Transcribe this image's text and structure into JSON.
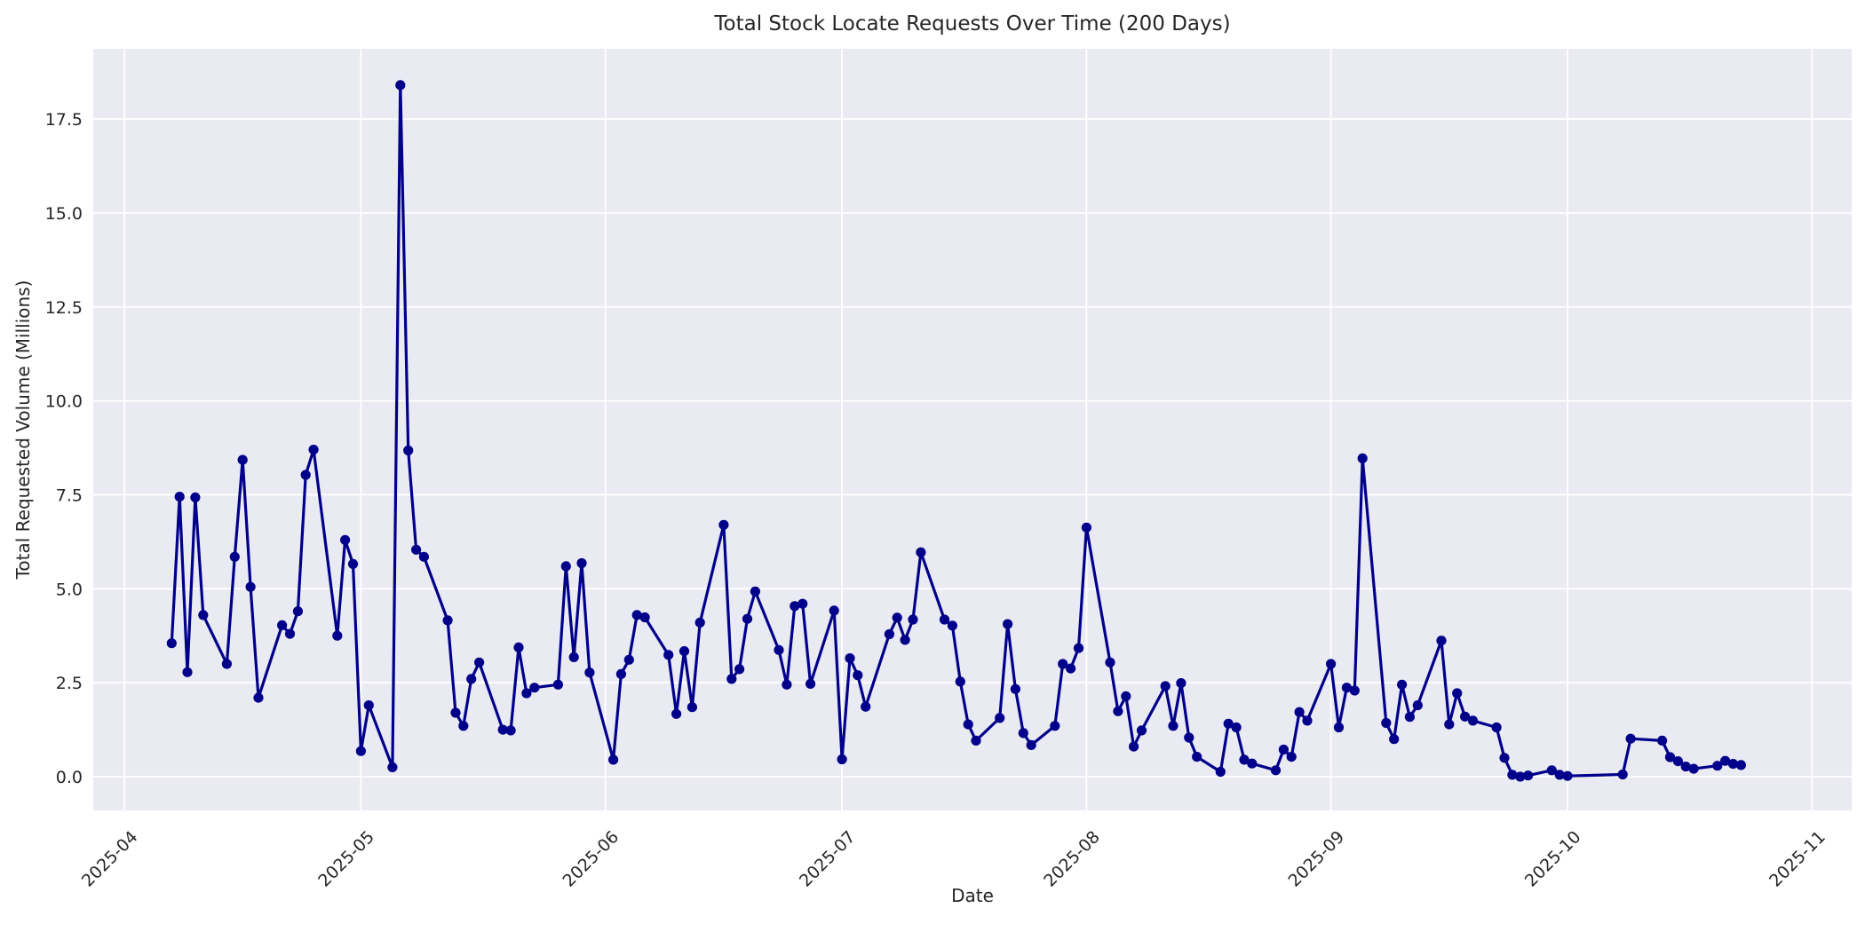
{
  "chart_data": {
    "type": "line",
    "title": "Total Stock Locate Requests Over Time (200 Days)",
    "xlabel": "Date",
    "ylabel": "Total Requested Volume (Millions)",
    "legend": "none",
    "grid": "on",
    "plot_bg_color": "#eaeaf2",
    "grid_color": "#ffffff",
    "line_color": "#00008b",
    "marker": "circle",
    "x_tick_labels": [
      "2025-04",
      "2025-05",
      "2025-06",
      "2025-07",
      "2025-08",
      "2025-09",
      "2025-10",
      "2025-11"
    ],
    "y_tick_labels": [
      "0.0",
      "2.5",
      "5.0",
      "7.5",
      "10.0",
      "12.5",
      "15.0",
      "17.5"
    ],
    "ylim_ticks": [
      0,
      17.5
    ],
    "x": [
      "2025-04-07",
      "2025-04-08",
      "2025-04-09",
      "2025-04-10",
      "2025-04-11",
      "2025-04-14",
      "2025-04-15",
      "2025-04-16",
      "2025-04-17",
      "2025-04-18",
      "2025-04-21",
      "2025-04-22",
      "2025-04-23",
      "2025-04-24",
      "2025-04-25",
      "2025-04-28",
      "2025-04-29",
      "2025-04-30",
      "2025-05-01",
      "2025-05-02",
      "2025-05-05",
      "2025-05-06",
      "2025-05-07",
      "2025-05-08",
      "2025-05-09",
      "2025-05-12",
      "2025-05-13",
      "2025-05-14",
      "2025-05-15",
      "2025-05-16",
      "2025-05-19",
      "2025-05-20",
      "2025-05-21",
      "2025-05-22",
      "2025-05-23",
      "2025-05-26",
      "2025-05-27",
      "2025-05-28",
      "2025-05-29",
      "2025-05-30",
      "2025-06-02",
      "2025-06-03",
      "2025-06-04",
      "2025-06-05",
      "2025-06-06",
      "2025-06-09",
      "2025-06-10",
      "2025-06-11",
      "2025-06-12",
      "2025-06-13",
      "2025-06-16",
      "2025-06-17",
      "2025-06-18",
      "2025-06-19",
      "2025-06-20",
      "2025-06-23",
      "2025-06-24",
      "2025-06-25",
      "2025-06-26",
      "2025-06-27",
      "2025-06-30",
      "2025-07-01",
      "2025-07-02",
      "2025-07-03",
      "2025-07-04",
      "2025-07-07",
      "2025-07-08",
      "2025-07-09",
      "2025-07-10",
      "2025-07-11",
      "2025-07-14",
      "2025-07-15",
      "2025-07-16",
      "2025-07-17",
      "2025-07-18",
      "2025-07-21",
      "2025-07-22",
      "2025-07-23",
      "2025-07-24",
      "2025-07-25",
      "2025-07-28",
      "2025-07-29",
      "2025-07-30",
      "2025-07-31",
      "2025-08-01",
      "2025-08-04",
      "2025-08-05",
      "2025-08-06",
      "2025-08-07",
      "2025-08-08",
      "2025-08-11",
      "2025-08-12",
      "2025-08-13",
      "2025-08-14",
      "2025-08-15",
      "2025-08-18",
      "2025-08-19",
      "2025-08-20",
      "2025-08-21",
      "2025-08-22",
      "2025-08-25",
      "2025-08-26",
      "2025-08-27",
      "2025-08-28",
      "2025-08-29",
      "2025-09-01",
      "2025-09-02",
      "2025-09-03",
      "2025-09-04",
      "2025-09-05",
      "2025-09-08",
      "2025-09-09",
      "2025-09-10",
      "2025-09-11",
      "2025-09-12",
      "2025-09-15",
      "2025-09-16",
      "2025-09-17",
      "2025-09-18",
      "2025-09-19",
      "2025-09-22",
      "2025-09-23",
      "2025-09-24",
      "2025-09-25",
      "2025-09-26",
      "2025-09-29",
      "2025-09-30",
      "2025-10-01",
      "2025-10-08",
      "2025-10-09",
      "2025-10-13",
      "2025-10-14",
      "2025-10-15",
      "2025-10-16",
      "2025-10-17",
      "2025-10-20",
      "2025-10-21",
      "2025-10-22",
      "2025-10-23"
    ],
    "y": [
      3.55,
      7.45,
      2.78,
      7.43,
      4.3,
      3.0,
      5.85,
      8.43,
      5.05,
      2.1,
      4.03,
      3.8,
      4.4,
      8.03,
      8.7,
      3.75,
      6.3,
      5.66,
      0.68,
      1.9,
      0.25,
      18.4,
      8.68,
      6.04,
      5.85,
      4.16,
      1.7,
      1.35,
      2.6,
      3.04,
      1.25,
      1.23,
      3.44,
      2.22,
      2.37,
      2.45,
      5.6,
      3.18,
      5.68,
      2.77,
      0.45,
      2.73,
      3.11,
      4.3,
      4.24,
      3.24,
      1.67,
      3.34,
      1.85,
      4.1,
      6.7,
      2.6,
      2.86,
      4.2,
      4.93,
      3.37,
      2.45,
      4.54,
      4.6,
      2.47,
      4.42,
      0.46,
      3.15,
      2.7,
      1.86,
      3.79,
      4.23,
      3.64,
      4.18,
      5.97,
      4.18,
      4.02,
      2.53,
      1.39,
      0.96,
      1.56,
      4.06,
      2.33,
      1.16,
      0.84,
      1.35,
      3.0,
      2.88,
      3.42,
      6.63,
      3.04,
      1.74,
      2.14,
      0.8,
      1.23,
      2.41,
      1.35,
      2.49,
      1.04,
      0.53,
      0.13,
      1.41,
      1.31,
      0.45,
      0.35,
      0.17,
      0.72,
      0.53,
      1.72,
      1.49,
      3.0,
      1.31,
      2.37,
      2.29,
      8.47,
      1.43,
      1.0,
      2.45,
      1.59,
      1.9,
      3.62,
      1.39,
      2.22,
      1.6,
      1.49,
      1.31,
      0.5,
      0.05,
      0.0,
      0.03,
      0.17,
      0.05,
      0.02,
      0.06,
      1.01,
      0.96,
      0.52,
      0.41,
      0.27,
      0.21,
      0.29,
      0.42,
      0.34,
      0.31
    ]
  }
}
